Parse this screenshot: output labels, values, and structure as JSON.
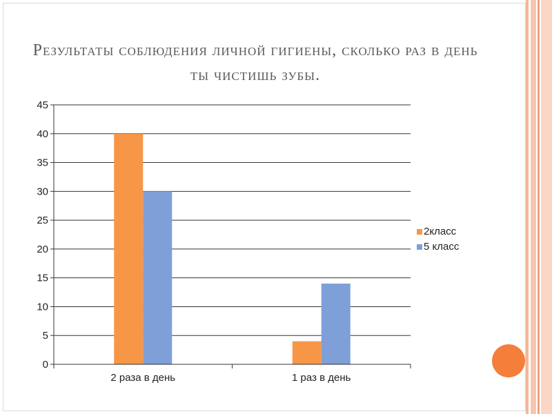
{
  "slide": {
    "title": "Результаты соблюдения личной гигиены, сколько раз в день ты чистишь зубы."
  },
  "chart_data": {
    "type": "bar",
    "categories": [
      "2 раза в день",
      "1 раз в день"
    ],
    "series": [
      {
        "name": "2класс",
        "values": [
          40,
          4
        ],
        "color": "#f79646"
      },
      {
        "name": "5 класс",
        "values": [
          30,
          14
        ],
        "color": "#7f9fd8"
      }
    ],
    "ylim": [
      0,
      45
    ],
    "yticks": [
      0,
      5,
      10,
      15,
      20,
      25,
      30,
      35,
      40,
      45
    ],
    "grid": true,
    "legend": "right"
  }
}
